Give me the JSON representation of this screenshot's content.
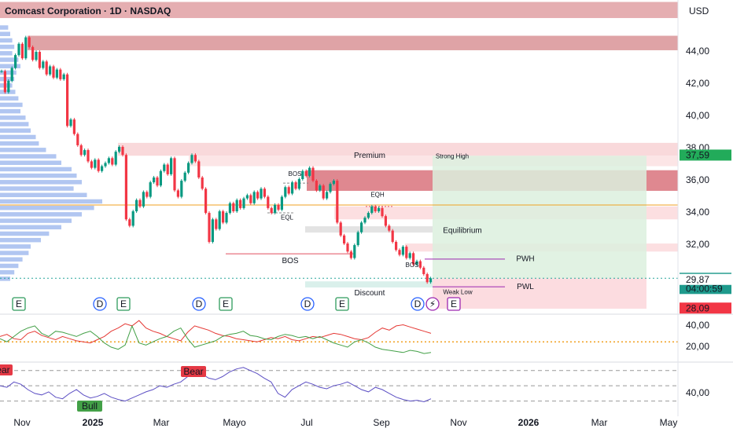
{
  "header": {
    "title": "Comcast Corporation · 1D · NASDAQ",
    "currency": "USD"
  },
  "chart_data": [
    {
      "type": "candlestick",
      "closes": [
        42.8,
        41.5,
        42.2,
        43.0,
        43.8,
        44.5,
        43.6,
        44.9,
        44.3,
        43.5,
        44.0,
        43.0,
        43.4,
        42.6,
        43.1,
        42.4,
        42.9,
        42.3,
        42.6,
        39.4,
        39.8,
        38.9,
        38.2,
        37.6,
        37.9,
        37.2,
        36.8,
        37.3,
        36.6,
        36.9,
        37.1,
        37.4,
        37.0,
        37.8,
        38.1,
        37.6,
        33.6,
        33.2,
        34.1,
        34.8,
        34.4,
        35.3,
        35.0,
        35.9,
        36.2,
        35.7,
        36.6,
        37.0,
        36.4,
        37.4,
        35.4,
        35.0,
        36.0,
        36.5,
        37.1,
        37.6,
        37.2,
        36.2,
        35.5,
        34.0,
        32.2,
        33.6,
        33.0,
        34.1,
        33.4,
        34.0,
        34.6,
        34.1,
        34.8,
        34.3,
        34.9,
        35.1,
        34.6,
        35.3,
        34.9,
        35.5,
        35.0,
        34.3,
        34.0,
        34.5,
        34.2,
        35.0,
        35.6,
        35.2,
        35.9,
        35.5,
        36.1,
        36.6,
        36.3,
        36.8,
        36.0,
        35.4,
        35.7,
        34.9,
        35.3,
        35.8,
        36.0,
        33.4,
        32.6,
        32.1,
        31.6,
        31.2,
        32.0,
        32.8,
        33.4,
        33.7,
        34.0,
        34.4,
        34.1,
        34.3,
        33.8,
        33.2,
        32.9,
        32.2,
        31.7,
        31.4,
        31.9,
        31.2,
        31.5,
        30.8,
        31.0,
        30.6,
        30.2,
        29.7,
        29.94
      ],
      "up_color": "#089981",
      "down_color": "#f23645",
      "xtick_labels": [
        "Nov",
        "2025",
        "Mar",
        "Mayo",
        "Jul",
        "Sep",
        "Nov",
        "2026",
        "Mar",
        "May"
      ],
      "ylim": [
        27.76,
        47.22
      ],
      "yticks": [
        {
          "value": 44,
          "label": "44,00"
        },
        {
          "value": 42,
          "label": "42,00"
        },
        {
          "value": 40,
          "label": "40,00"
        },
        {
          "value": 38,
          "label": "38,00"
        },
        {
          "value": 36,
          "label": "36,00"
        },
        {
          "value": 34,
          "label": "34,00"
        },
        {
          "value": 32,
          "label": "32,00"
        }
      ],
      "price_labels": [
        {
          "value": 37.59,
          "label": "37,59",
          "color": "#22ab5a"
        },
        {
          "value": 29.94,
          "label": "29,94",
          "color": "#1e9a8c"
        },
        {
          "value": 29.87,
          "label": "29,87",
          "color": "#ffffff"
        },
        {
          "value": 28.09,
          "label": "28,09",
          "color": "#f23645"
        }
      ],
      "countdown": "04:00:59",
      "volume_profile": {
        "color": "#9db8ee",
        "xlim": [
          0,
          100
        ],
        "prices": [
          45.5,
          45.1,
          44.7,
          44.3,
          43.9,
          43.5,
          43.1,
          42.7,
          42.3,
          41.9,
          41.5,
          41.1,
          40.7,
          40.3,
          39.9,
          39.5,
          39.1,
          38.7,
          38.3,
          37.9,
          37.5,
          37.1,
          36.7,
          36.3,
          35.9,
          35.5,
          35.1,
          34.7,
          34.3,
          33.9,
          33.5,
          33.1,
          32.7,
          32.3,
          31.9,
          31.5,
          31.1,
          30.7,
          30.3,
          29.9
        ],
        "values": [
          8,
          10,
          12,
          14,
          12,
          18,
          20,
          16,
          14,
          12,
          15,
          18,
          22,
          20,
          25,
          28,
          30,
          35,
          38,
          45,
          55,
          60,
          70,
          75,
          80,
          72,
          85,
          100,
          92,
          80,
          70,
          60,
          48,
          40,
          30,
          28,
          22,
          18,
          14,
          10
        ]
      },
      "zones": [
        {
          "top": 47.1,
          "bottom": 46.1,
          "color": "#e0a0a3"
        },
        {
          "top": 45.0,
          "bottom": 44.1,
          "color": "#d99396"
        },
        {
          "top": 38.35,
          "bottom": 37.55,
          "color": "#f8d2d5"
        },
        {
          "top": 37.55,
          "bottom": 36.9,
          "color": "#fbe0e2"
        },
        {
          "top": 36.65,
          "bottom": 35.37,
          "color": "#d9737c"
        },
        {
          "top": 34.4,
          "bottom": 33.6,
          "color": "#fbd9dc"
        },
        {
          "top": 33.17,
          "bottom": 32.78,
          "color": "#dedede"
        },
        {
          "top": 32.1,
          "bottom": 31.6,
          "color": "#fbd9dc"
        },
        {
          "top": 37.55,
          "bottom": 29.94,
          "color": "#dcf0de"
        },
        {
          "top": 29.94,
          "bottom": 28.05,
          "color": "#fbd6da"
        },
        {
          "top": 29.75,
          "bottom": 29.37,
          "color": "#d3ede7"
        }
      ],
      "levels": [
        {
          "value": 34.49,
          "color": "#f0a020"
        },
        {
          "value": 29.94,
          "color": "#26a69a"
        }
      ],
      "segments": [
        {
          "value": 31.46,
          "color": "#e04f5f"
        },
        {
          "value": 34.0,
          "color": "#888888"
        },
        {
          "value": 35.85,
          "color": "#888888"
        },
        {
          "value": 34.4,
          "color": "#e04f5f"
        },
        {
          "value": 31.13,
          "color": "#9c27b0"
        },
        {
          "value": 29.41,
          "color": "#9c27b0"
        }
      ],
      "annotations": [
        {
          "text": "Premium",
          "value": 37.55,
          "color": "#e04f5f"
        },
        {
          "text": "Strong High",
          "value": 37.5,
          "color": "#e04f5f"
        },
        {
          "text": "EQH",
          "value": 35.1,
          "color": "#e04f5f"
        },
        {
          "text": "Equilibrium",
          "value": 32.9,
          "color": "#777777"
        },
        {
          "text": "Discount",
          "value": 29.0,
          "color": "#1e9a8c"
        },
        {
          "text": "Weak Low",
          "value": 29.05,
          "color": "#1e9a8c"
        },
        {
          "text": "BOS",
          "value": 31.0,
          "color": "#e04f5f"
        },
        {
          "text": "BOS",
          "value": 36.4,
          "color": "#1e9a8c"
        },
        {
          "text": "BOS",
          "value": 30.75,
          "color": "#e04f5f"
        },
        {
          "text": "EQL",
          "value": 33.7,
          "color": "#1e9a8c"
        },
        {
          "text": "PWH",
          "value": 31.13,
          "color": "#9c27b0"
        },
        {
          "text": "PWL",
          "value": 29.41,
          "color": "#9c27b0"
        }
      ],
      "events": [
        {
          "label": "E",
          "color": "#2e9b5c"
        },
        {
          "label": "D",
          "color": "#2962ff"
        },
        {
          "label": "E",
          "color": "#2e9b5c"
        },
        {
          "label": "D",
          "color": "#2962ff"
        },
        {
          "label": "E",
          "color": "#2e9b5c"
        },
        {
          "label": "D",
          "color": "#2962ff"
        },
        {
          "label": "E",
          "color": "#2e9b5c"
        },
        {
          "label": "D",
          "color": "#2962ff"
        },
        {
          "label": "⚡",
          "color": "#9c27b0"
        },
        {
          "label": "E",
          "color": "#9c27b0"
        }
      ]
    },
    {
      "type": "line",
      "series": [
        {
          "color": "#e53935",
          "values": [
            30,
            32,
            28,
            27,
            33,
            35,
            31,
            29,
            27,
            30,
            28,
            26,
            25,
            24,
            27,
            30,
            35,
            38,
            42,
            40,
            45,
            38,
            35,
            33,
            30,
            28,
            26,
            34,
            40,
            38,
            36,
            33,
            31,
            30,
            28,
            27,
            26,
            25,
            27,
            29,
            28,
            30,
            27,
            26,
            28,
            30,
            29,
            31,
            33,
            32,
            30,
            28,
            27,
            29,
            34,
            38,
            36,
            40,
            41,
            39,
            37,
            35,
            33
          ]
        },
        {
          "color": "#43a047",
          "values": [
            28,
            25,
            30,
            35,
            38,
            40,
            33,
            30,
            35,
            34,
            32,
            30,
            33,
            35,
            30,
            24,
            20,
            18,
            22,
            40,
            24,
            22,
            25,
            28,
            30,
            35,
            38,
            28,
            20,
            22,
            24,
            26,
            30,
            32,
            33,
            35,
            31,
            30,
            28,
            27,
            30,
            32,
            31,
            29,
            30,
            28,
            30,
            27,
            24,
            22,
            20,
            25,
            27,
            24,
            20,
            18,
            17,
            16,
            15,
            17,
            16,
            14,
            15
          ]
        }
      ],
      "ylim": [
        6.7,
        51
      ],
      "yticks": [
        {
          "value": 40,
          "label": "40,00"
        },
        {
          "value": 20,
          "label": "20,00"
        }
      ],
      "levels": [
        {
          "value": 25,
          "color": "#f0a020"
        }
      ]
    },
    {
      "type": "line",
      "series": [
        {
          "color": "#5c4fc4",
          "values": [
            50,
            48,
            55,
            52,
            45,
            40,
            38,
            42,
            35,
            33,
            40,
            45,
            38,
            34,
            36,
            40,
            35,
            32,
            30,
            34,
            38,
            42,
            45,
            50,
            48,
            52,
            55,
            62,
            70,
            66,
            60,
            58,
            62,
            68,
            72,
            74,
            70,
            66,
            60,
            55,
            40,
            35,
            45,
            50,
            55,
            52,
            48,
            46,
            50,
            52,
            55,
            50,
            45,
            42,
            48,
            45,
            40,
            35,
            32,
            30,
            31,
            29,
            33
          ]
        }
      ],
      "ylim": [
        10,
        80
      ],
      "yticks": [
        {
          "value": 40,
          "label": "40,00"
        }
      ],
      "levels": [
        {
          "value": 70,
          "color": "#999999"
        },
        {
          "value": 50,
          "color": "#999999"
        },
        {
          "value": 30,
          "color": "#999999"
        }
      ],
      "annotations": [
        {
          "text": "Bear",
          "color": "#e53945"
        },
        {
          "text": "Bear",
          "color": "#e53945"
        },
        {
          "text": "Bull",
          "color": "#43a047"
        }
      ]
    }
  ]
}
